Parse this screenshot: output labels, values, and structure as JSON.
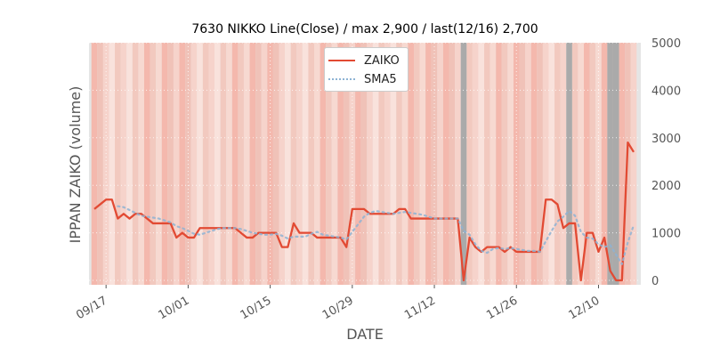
{
  "chart_data": {
    "type": "line",
    "title": "7630 NIKKO Line(Close) / max 2,900 / last(12/16) 2,700",
    "xlabel": "DATE",
    "ylabel": "IPPAN ZAIKO (volume)",
    "ylim": [
      0,
      5000
    ],
    "yticks": [
      0,
      1000,
      2000,
      3000,
      4000,
      5000
    ],
    "ytick_labels": [
      "0",
      "1000",
      "2000",
      "3000",
      "4000",
      "5000"
    ],
    "y_axis_side": "right",
    "x_start": "2019-09-15",
    "x_end": "2019-12-16",
    "xticks": [
      "2019-09-17",
      "2019-10-01",
      "2019-10-15",
      "2019-10-29",
      "2019-11-12",
      "2019-11-26",
      "2019-12-10"
    ],
    "xtick_labels": [
      "09/17",
      "10/01",
      "10/15",
      "10/29",
      "11/12",
      "11/26",
      "12/10"
    ],
    "legend": [
      "ZAIKO",
      "SMA5"
    ],
    "legend_position": "top-center",
    "series": [
      {
        "name": "ZAIKO",
        "color": "#e24a33",
        "style": "solid",
        "values": [
          1500,
          1600,
          1700,
          1700,
          1300,
          1400,
          1300,
          1400,
          1400,
          1300,
          1200,
          1200,
          1200,
          1200,
          900,
          1000,
          900,
          900,
          1100,
          1100,
          1100,
          1100,
          1100,
          1100,
          1100,
          1000,
          900,
          900,
          1000,
          1000,
          1000,
          1000,
          700,
          700,
          1200,
          1000,
          1000,
          1000,
          900,
          900,
          900,
          900,
          900,
          700,
          1500,
          1500,
          1500,
          1400,
          1400,
          1400,
          1400,
          1400,
          1500,
          1500,
          1300,
          1300,
          1300,
          1300,
          1300,
          1300,
          1300,
          1300,
          1300,
          0,
          900,
          700,
          600,
          700,
          700,
          700,
          600,
          700,
          600,
          600,
          600,
          600,
          600,
          1700,
          1700,
          1600,
          1100,
          1200,
          1200,
          0,
          1000,
          1000,
          600,
          900,
          200,
          0,
          0,
          2900,
          2700
        ]
      },
      {
        "name": "SMA5",
        "color": "#8eb3d4",
        "style": "dotted",
        "values": [
          null,
          null,
          null,
          null,
          1560,
          1540,
          1480,
          1420,
          1360,
          1340,
          1320,
          1300,
          1260,
          1220,
          1140,
          1100,
          1040,
          980,
          960,
          1000,
          1040,
          1080,
          1100,
          1100,
          1100,
          1080,
          1040,
          1000,
          980,
          960,
          960,
          980,
          940,
          880,
          920,
          920,
          920,
          980,
          1020,
          960,
          940,
          920,
          900,
          860,
          1020,
          1180,
          1340,
          1420,
          1460,
          1440,
          1420,
          1400,
          1420,
          1440,
          1420,
          1400,
          1380,
          1340,
          1300,
          1300,
          1300,
          1300,
          1300,
          1040,
          960,
          760,
          620,
          580,
          660,
          680,
          660,
          680,
          660,
          640,
          620,
          620,
          600,
          820,
          1040,
          1240,
          1340,
          1460,
          1360,
          1020,
          900,
          880,
          760,
          700,
          740,
          540,
          340,
          800,
          1160
        ]
      }
    ]
  }
}
